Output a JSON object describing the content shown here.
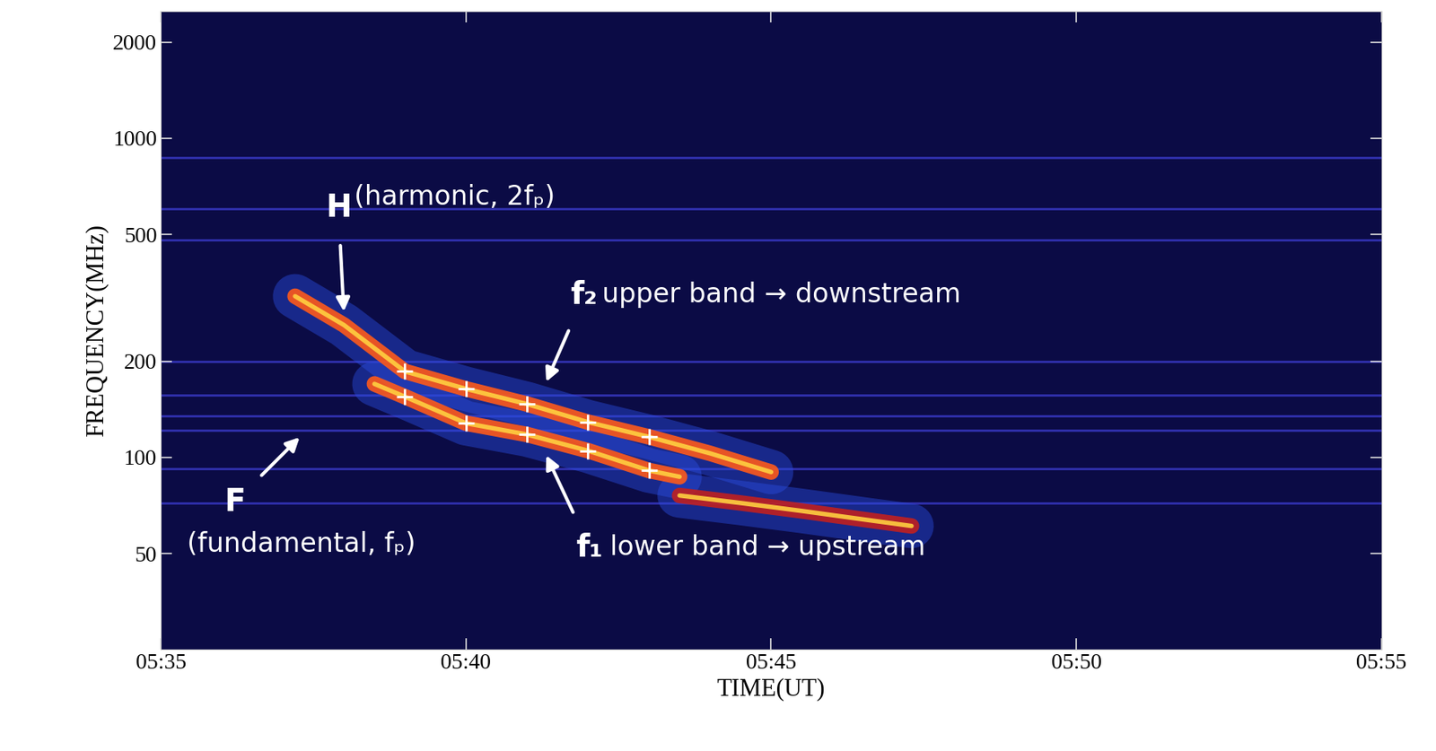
{
  "chart_data": {
    "type": "spectrogram",
    "xlabel": "TIME(UT)",
    "ylabel": "FREQUENCY(MHz)",
    "log": "y",
    "xlim": [
      335,
      355
    ],
    "xticks": [
      {
        "value": 335,
        "label": "05:35"
      },
      {
        "value": 340,
        "label": "05:40"
      },
      {
        "value": 345,
        "label": "05:45"
      },
      {
        "value": 350,
        "label": "05:50"
      },
      {
        "value": 355,
        "label": "05:55"
      }
    ],
    "ylim": [
      25,
      2500
    ],
    "yticks": [
      50,
      100,
      200,
      500,
      1000,
      2000
    ],
    "background": "#0b0b45",
    "interference_lines": {
      "values": [
        870,
        600,
        480,
        200,
        157,
        135,
        122,
        92,
        72
      ],
      "color": "#3a3ac8"
    },
    "series": [
      {
        "type": "line",
        "color": "#ff5a1a",
        "x": [
          337.2,
          338,
          339,
          340,
          341,
          342,
          343,
          344,
          345
        ],
        "values": [
          320,
          260,
          186,
          164,
          147,
          129,
          116,
          103,
          90
        ]
      },
      {
        "type": "line",
        "color": "#ff5a1a",
        "x": [
          338.5,
          339,
          340,
          341,
          342,
          343,
          343.5
        ],
        "values": [
          170,
          155,
          128,
          118,
          105,
          91,
          87
        ]
      },
      {
        "type": "line",
        "color": "#c02020",
        "x": [
          343.5,
          344.5,
          345.5,
          346.5,
          347.3
        ],
        "values": [
          76,
          72,
          68,
          64,
          61
        ]
      },
      {
        "type": "scatter",
        "color": "#ffffff",
        "marker": "plus",
        "x": [
          339,
          340,
          341,
          342,
          343,
          339,
          340,
          341,
          342,
          343
        ],
        "values": [
          186,
          164,
          147,
          129,
          116,
          155,
          128,
          118,
          105,
          91
        ]
      }
    ],
    "annotations": [
      {
        "text": "H",
        "label": "(harmonic, 2fₚ)",
        "point": [
          338.0,
          282
        ]
      },
      {
        "text": "f₂",
        "label": "upper band → downstream",
        "point": [
          341.3,
          170
        ]
      },
      {
        "text": "f₁",
        "label": "lower band → upstream",
        "point": [
          341.3,
          103
        ]
      },
      {
        "text": "F",
        "label": "(fundamental, fₚ)",
        "point": [
          337.3,
          117
        ]
      }
    ]
  }
}
